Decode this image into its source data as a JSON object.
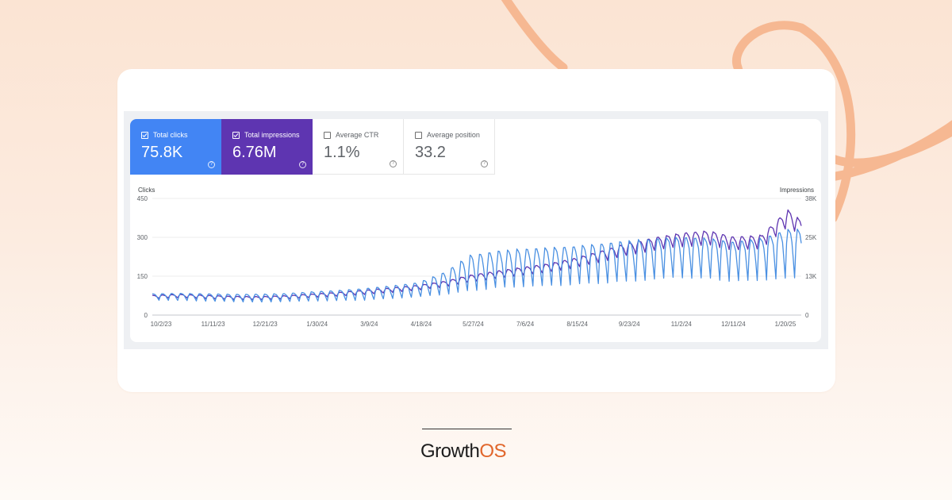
{
  "metrics": [
    {
      "label": "Total clicks",
      "value": "75.8K",
      "checked": true
    },
    {
      "label": "Total impressions",
      "value": "6.76M",
      "checked": true
    },
    {
      "label": "Average CTR",
      "value": "1.1%",
      "checked": false
    },
    {
      "label": "Average position",
      "value": "33.2",
      "checked": false
    }
  ],
  "help_glyph": "?",
  "colors": {
    "clicks": "#4a90e2",
    "impressions": "#5e35b1",
    "clicks_tile": "#4285f4",
    "impressions_tile": "#5e35b1",
    "brand_accent": "#e1662b"
  },
  "brand": {
    "name_part1": "Growth",
    "name_part2": "OS"
  },
  "chart_data": {
    "type": "line",
    "y_left": {
      "label": "Clicks",
      "ticks": [
        "450",
        "300",
        "150",
        "0"
      ],
      "range": [
        0,
        450
      ]
    },
    "y_right": {
      "label": "Impressions",
      "ticks": [
        "38K",
        "25K",
        "13K",
        "0"
      ],
      "range": [
        0,
        38000
      ]
    },
    "x_ticks": [
      "10/2/23",
      "11/11/23",
      "12/21/23",
      "1/30/24",
      "3/9/24",
      "4/18/24",
      "5/27/24",
      "7/6/24",
      "8/15/24",
      "9/23/24",
      "11/2/24",
      "12/11/24",
      "1/20/25"
    ],
    "x_range": [
      "2023-10-02",
      "2025-01-30"
    ],
    "series": [
      {
        "name": "Clicks",
        "axis": "left",
        "x": [
          "2023-10-02",
          "2023-10-22",
          "2023-11-11",
          "2023-12-01",
          "2023-12-21",
          "2024-01-10",
          "2024-01-30",
          "2024-02-19",
          "2024-03-09",
          "2024-03-29",
          "2024-04-18",
          "2024-05-08",
          "2024-05-27",
          "2024-06-16",
          "2024-07-06",
          "2024-07-26",
          "2024-08-15",
          "2024-09-04",
          "2024-09-23",
          "2024-10-13",
          "2024-11-02",
          "2024-11-22",
          "2024-12-11",
          "2024-12-31",
          "2025-01-20",
          "2025-01-30"
        ],
        "mid": [
          70,
          70,
          68,
          66,
          65,
          67,
          72,
          76,
          80,
          87,
          95,
          115,
          150,
          170,
          180,
          185,
          195,
          205,
          215,
          228,
          235,
          235,
          228,
          235,
          260,
          250
        ],
        "peak": [
          82,
          84,
          82,
          80,
          80,
          83,
          90,
          95,
          102,
          112,
          125,
          165,
          230,
          245,
          255,
          260,
          265,
          275,
          285,
          295,
          300,
          295,
          280,
          295,
          330,
          330
        ],
        "trough": [
          58,
          56,
          54,
          52,
          50,
          52,
          54,
          56,
          58,
          64,
          70,
          80,
          95,
          105,
          110,
          112,
          120,
          125,
          130,
          138,
          145,
          142,
          130,
          135,
          140,
          140
        ]
      },
      {
        "name": "Impressions",
        "axis": "right",
        "x": [
          "2023-10-02",
          "2023-10-22",
          "2023-11-11",
          "2023-12-01",
          "2023-12-21",
          "2024-01-10",
          "2024-01-30",
          "2024-02-19",
          "2024-03-09",
          "2024-03-29",
          "2024-04-18",
          "2024-05-08",
          "2024-05-27",
          "2024-06-16",
          "2024-07-06",
          "2024-07-26",
          "2024-08-15",
          "2024-09-04",
          "2024-09-23",
          "2024-10-13",
          "2024-11-02",
          "2024-11-22",
          "2024-12-11",
          "2024-12-31",
          "2025-01-20",
          "2025-01-30"
        ],
        "values": [
          5900,
          6200,
          5900,
          5600,
          5500,
          5800,
          6300,
          6800,
          7400,
          8100,
          8900,
          10100,
          11900,
          13100,
          14300,
          15400,
          17100,
          19300,
          21500,
          23200,
          24500,
          25100,
          23200,
          23800,
          31400,
          28200
        ]
      }
    ]
  }
}
